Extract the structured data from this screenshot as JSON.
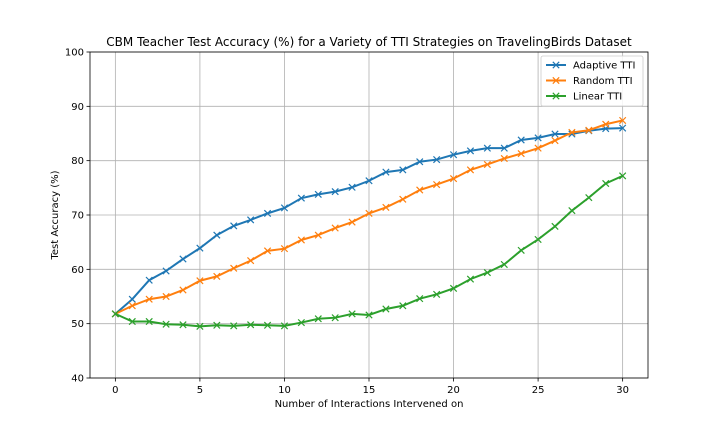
{
  "chart_data": {
    "type": "line",
    "title": "CBM Teacher Test Accuracy (%) for a Variety of TTI Strategies on TravelingBirds Dataset",
    "xlabel": "Number of Interactions Intervened on",
    "ylabel": "Test Accuracy (%)",
    "xlim": [
      -1.5,
      31.5
    ],
    "ylim": [
      40,
      100
    ],
    "xticks": [
      0,
      5,
      10,
      15,
      20,
      25,
      30
    ],
    "yticks": [
      40,
      50,
      60,
      70,
      80,
      90,
      100
    ],
    "grid": true,
    "legend_position": "top-right",
    "marker": "x",
    "x": [
      0,
      1,
      2,
      3,
      4,
      5,
      6,
      7,
      8,
      9,
      10,
      11,
      12,
      13,
      14,
      15,
      16,
      17,
      18,
      19,
      20,
      21,
      22,
      23,
      24,
      25,
      26,
      27,
      28,
      29,
      30
    ],
    "series": [
      {
        "name": "Adaptive TTI",
        "color": "#1f77b4",
        "values": [
          51.8,
          54.5,
          58.0,
          59.7,
          61.9,
          63.9,
          66.3,
          68.0,
          69.1,
          70.3,
          71.3,
          73.1,
          73.8,
          74.3,
          75.1,
          76.3,
          77.9,
          78.3,
          79.8,
          80.2,
          81.1,
          81.8,
          82.3,
          82.3,
          83.8,
          84.2,
          84.9,
          84.9,
          85.5,
          85.9,
          86.0
        ]
      },
      {
        "name": "Random TTI",
        "color": "#ff7f0e",
        "values": [
          51.8,
          53.3,
          54.5,
          55.0,
          56.2,
          57.9,
          58.7,
          60.2,
          61.6,
          63.4,
          63.8,
          65.4,
          66.3,
          67.6,
          68.7,
          70.3,
          71.4,
          72.9,
          74.6,
          75.6,
          76.7,
          78.3,
          79.3,
          80.4,
          81.3,
          82.3,
          83.7,
          85.2,
          85.6,
          86.7,
          87.4
        ]
      },
      {
        "name": "Linear TTI",
        "color": "#2ca02c",
        "values": [
          51.8,
          50.4,
          50.4,
          49.9,
          49.8,
          49.5,
          49.7,
          49.6,
          49.8,
          49.7,
          49.6,
          50.2,
          50.9,
          51.1,
          51.8,
          51.6,
          52.7,
          53.3,
          54.6,
          55.4,
          56.5,
          58.2,
          59.4,
          60.9,
          63.5,
          65.5,
          67.9,
          70.8,
          73.2,
          75.8,
          77.2
        ]
      }
    ]
  }
}
